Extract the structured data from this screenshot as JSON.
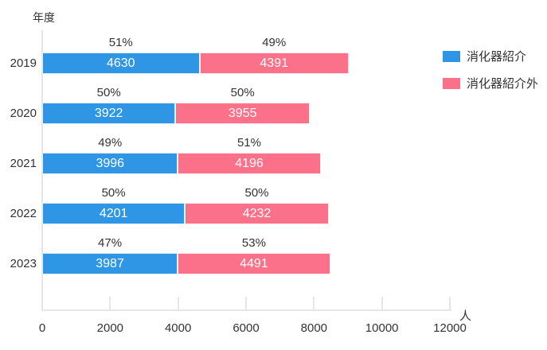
{
  "chart_data": {
    "type": "bar",
    "orientation": "horizontal",
    "stacked": true,
    "y_axis_title": "年度",
    "x_axis_unit_label": "人",
    "categories": [
      "2019",
      "2020",
      "2021",
      "2022",
      "2023"
    ],
    "series": [
      {
        "name": "消化器紹介",
        "color": "#2e96e5",
        "values": [
          4630,
          3922,
          3996,
          4201,
          3987
        ],
        "percent_labels": [
          "51%",
          "50%",
          "49%",
          "50%",
          "47%"
        ]
      },
      {
        "name": "消化器紹介外",
        "color": "#fb7189",
        "values": [
          4391,
          3955,
          4196,
          4232,
          4491
        ],
        "percent_labels": [
          "49%",
          "50%",
          "51%",
          "50%",
          "53%"
        ]
      }
    ],
    "x_ticks": [
      0,
      2000,
      4000,
      6000,
      8000,
      10000,
      12000
    ],
    "xlim": [
      0,
      12000
    ],
    "grid": false,
    "legend_position": "top-right",
    "axis_color": "#e6e6e6",
    "text_color": "#333333",
    "bar_value_text_color": "#ffffff"
  }
}
